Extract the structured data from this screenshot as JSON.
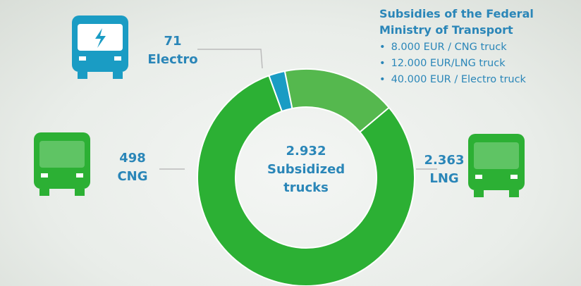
{
  "chart_data": {
    "type": "pie",
    "categories": [
      "Electro",
      "CNG",
      "LNG"
    ],
    "values": [
      71,
      498,
      2363
    ],
    "value_labels": [
      "71",
      "498",
      "2.363"
    ],
    "colors": [
      "#1a9cc4",
      "#55b84e",
      "#2cb034"
    ],
    "center_label": {
      "value": 2932,
      "label": "2.932"
    },
    "center_text": "Subsidized trucks"
  },
  "info_box": {
    "title": "Subsidies of the Federal Ministry of Transport",
    "items": [
      "8.000 EUR / CNG truck",
      "12.000 EUR/LNG truck",
      "40.000 EUR / Electro truck"
    ]
  }
}
